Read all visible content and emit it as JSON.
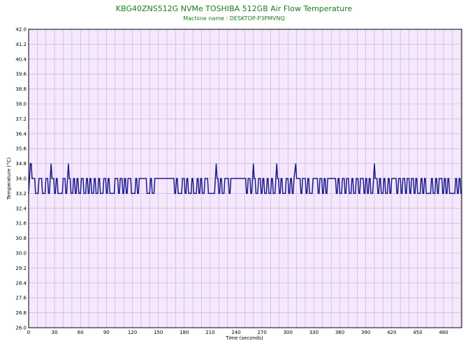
{
  "chart_data": {
    "type": "line",
    "title": "KBG40ZNS512G NVMe TOSHIBA 512GB Air Flow Temperature",
    "subtitle": "Machine name : DESKTOP-P3PMVNQ",
    "xlabel": "Time (seconds)",
    "ylabel": "Temperature (°C)",
    "xlim": [
      0,
      501
    ],
    "ylim": [
      26.0,
      42.0
    ],
    "x_ticks": [
      0,
      30,
      60,
      90,
      120,
      150,
      180,
      210,
      240,
      270,
      300,
      330,
      360,
      390,
      420,
      450,
      480
    ],
    "y_ticks": [
      26.0,
      26.8,
      27.6,
      28.4,
      29.2,
      30.0,
      30.8,
      31.6,
      32.4,
      33.2,
      34.0,
      34.8,
      35.6,
      36.4,
      37.2,
      38.0,
      38.8,
      39.6,
      40.4,
      41.2,
      42.0
    ],
    "grid": true,
    "colors": {
      "line": "#1a1a8c",
      "plot_bg": "#f5e8fc",
      "grid": "#c8a8d8",
      "title": "#1a7a1a"
    },
    "series": [
      {
        "x": [
          0,
          1,
          2,
          3,
          4,
          5,
          7,
          8,
          11,
          12,
          15,
          16,
          19,
          20,
          22,
          23,
          24,
          25,
          26,
          27,
          29,
          30,
          31,
          32,
          33,
          34,
          39,
          40,
          42,
          43,
          44,
          45,
          46,
          47,
          48,
          49,
          51,
          52,
          53,
          54,
          55,
          56,
          57,
          58,
          60,
          61,
          63,
          64,
          66,
          67,
          68,
          69,
          70,
          71,
          72,
          73,
          75,
          76,
          77,
          78,
          80,
          81,
          82,
          83,
          86,
          87,
          89,
          90,
          91,
          92,
          93,
          94,
          99,
          100,
          103,
          104,
          105,
          106,
          108,
          109,
          110,
          111,
          112,
          113,
          114,
          115,
          118,
          119,
          123,
          124,
          125,
          126,
          127,
          128,
          136,
          137,
          140,
          141,
          142,
          143,
          145,
          146,
          168,
          169,
          170,
          171,
          172,
          173,
          177,
          178,
          180,
          181,
          182,
          183,
          184,
          185,
          188,
          189,
          190,
          191,
          194,
          195,
          196,
          197,
          198,
          199,
          200,
          201,
          203,
          204,
          207,
          208,
          215,
          216,
          217,
          218,
          219,
          220,
          221,
          222,
          223,
          224,
          226,
          227,
          231,
          232,
          233,
          234,
          251,
          252,
          253,
          254,
          256,
          257,
          258,
          259,
          260,
          261,
          262,
          263,
          265,
          266,
          268,
          269,
          270,
          271,
          272,
          273,
          275,
          276,
          277,
          278,
          280,
          281,
          282,
          283,
          285,
          286,
          287,
          288,
          289,
          290,
          291,
          292,
          293,
          294,
          297,
          298,
          300,
          301,
          302,
          303,
          304,
          305,
          306,
          307,
          309,
          310,
          314,
          315,
          316,
          317,
          320,
          321,
          322,
          323,
          324,
          325,
          328,
          329,
          334,
          335,
          336,
          337,
          339,
          340,
          341,
          342,
          343,
          344,
          345,
          346,
          355,
          356,
          357,
          358,
          359,
          360,
          362,
          363,
          365,
          366,
          367,
          368,
          370,
          371,
          373,
          374,
          375,
          376,
          378,
          379,
          381,
          382,
          383,
          384,
          387,
          388,
          389,
          390,
          391,
          392,
          393,
          394,
          395,
          396,
          398,
          399,
          400,
          401,
          403,
          404,
          405,
          406,
          407,
          408,
          410,
          411,
          412,
          413,
          415,
          416,
          417,
          418,
          419,
          420,
          425,
          426,
          427,
          428,
          430,
          431,
          432,
          433,
          435,
          436,
          437,
          438,
          440,
          441,
          442,
          443,
          445,
          446,
          447,
          448,
          449,
          450,
          453,
          454,
          455,
          456,
          457,
          458,
          459,
          460,
          465,
          466,
          467,
          468,
          470,
          471,
          472,
          473,
          474,
          475,
          478,
          479,
          480,
          481,
          482,
          483,
          484,
          485,
          486,
          487,
          493,
          494,
          495,
          496,
          497,
          498,
          499,
          500,
          501
        ],
        "values": [
          33.2,
          34.0,
          34.8,
          34.8,
          34.0,
          34.0,
          34.0,
          33.2,
          33.2,
          34.0,
          34.0,
          33.2,
          33.2,
          34.0,
          34.0,
          33.2,
          33.2,
          34.0,
          34.8,
          34.0,
          34.0,
          33.2,
          33.2,
          34.0,
          34.0,
          33.2,
          33.2,
          34.0,
          34.0,
          33.2,
          33.2,
          34.0,
          34.8,
          34.0,
          34.0,
          33.2,
          33.2,
          34.0,
          34.0,
          33.2,
          33.2,
          34.0,
          34.0,
          33.2,
          33.2,
          34.0,
          34.0,
          33.2,
          33.2,
          34.0,
          34.0,
          33.2,
          33.2,
          34.0,
          34.0,
          33.2,
          33.2,
          34.0,
          34.0,
          33.2,
          33.2,
          34.0,
          34.0,
          33.2,
          33.2,
          34.0,
          34.0,
          33.2,
          33.2,
          34.0,
          34.0,
          33.2,
          33.2,
          34.0,
          34.0,
          33.2,
          33.2,
          34.0,
          34.0,
          33.2,
          33.2,
          34.0,
          34.0,
          33.2,
          33.2,
          34.0,
          34.0,
          33.2,
          33.2,
          34.0,
          34.0,
          33.2,
          33.2,
          34.0,
          34.0,
          33.2,
          33.2,
          34.0,
          34.0,
          33.2,
          33.2,
          34.0,
          34.0,
          33.2,
          33.2,
          34.0,
          34.0,
          33.2,
          33.2,
          34.0,
          34.0,
          33.2,
          33.2,
          34.0,
          34.0,
          33.2,
          33.2,
          34.0,
          34.0,
          33.2,
          33.2,
          34.0,
          34.0,
          33.2,
          33.2,
          34.0,
          34.0,
          33.2,
          33.2,
          34.0,
          34.0,
          33.2,
          33.2,
          34.0,
          34.8,
          34.0,
          34.0,
          33.2,
          33.2,
          34.0,
          34.0,
          33.2,
          33.2,
          34.0,
          34.0,
          33.2,
          33.2,
          34.0,
          34.0,
          33.2,
          33.2,
          34.0,
          34.0,
          33.2,
          33.2,
          34.0,
          34.8,
          34.0,
          34.0,
          33.2,
          33.2,
          34.0,
          34.0,
          33.2,
          33.2,
          34.0,
          34.0,
          33.2,
          33.2,
          34.0,
          34.0,
          33.2,
          33.2,
          34.0,
          34.0,
          33.2,
          33.2,
          34.0,
          34.8,
          34.0,
          34.0,
          33.2,
          33.2,
          34.0,
          34.0,
          33.2,
          33.2,
          34.0,
          34.0,
          33.2,
          33.2,
          34.0,
          34.0,
          33.2,
          33.2,
          34.0,
          34.8,
          34.0,
          34.0,
          33.2,
          33.2,
          34.0,
          34.0,
          33.2,
          33.2,
          34.0,
          34.0,
          33.2,
          33.2,
          34.0,
          34.0,
          33.2,
          33.2,
          34.0,
          34.0,
          33.2,
          33.2,
          34.0,
          34.0,
          33.2,
          33.2,
          34.0,
          34.0,
          33.2,
          33.2,
          34.0,
          34.0,
          33.2,
          33.2,
          34.0,
          34.0,
          33.2,
          33.2,
          34.0,
          34.0,
          33.2,
          33.2,
          34.0,
          34.0,
          33.2,
          33.2,
          34.0,
          34.0,
          33.2,
          33.2,
          34.0,
          34.0,
          33.2,
          33.2,
          34.0,
          34.0,
          33.2,
          33.2,
          34.0,
          34.0,
          33.2,
          33.2,
          34.0,
          34.8,
          34.0,
          34.0,
          33.2,
          33.2,
          34.0,
          34.0,
          33.2,
          33.2,
          34.0,
          34.0,
          33.2,
          33.2,
          34.0,
          34.0,
          33.2,
          33.2,
          34.0,
          34.0,
          33.2,
          33.2,
          34.0,
          34.0,
          33.2,
          33.2,
          34.0,
          34.0,
          33.2,
          33.2,
          34.0,
          34.0,
          33.2,
          33.2,
          34.0,
          34.0,
          33.2,
          33.2,
          34.0,
          34.0,
          33.2,
          33.2,
          34.0,
          34.0,
          33.2,
          33.2,
          34.0,
          34.0,
          33.2,
          33.2,
          34.0,
          34.0,
          33.2,
          33.2,
          34.0,
          34.0,
          33.2,
          33.2,
          34.0,
          34.0,
          33.2,
          33.2,
          34.0,
          34.0,
          33.2,
          33.2,
          34.0,
          34.0,
          33.2,
          33.2,
          34.0,
          34.0,
          33.2,
          33.2,
          34.0,
          34.0,
          33.2,
          33.2
        ]
      }
    ]
  }
}
